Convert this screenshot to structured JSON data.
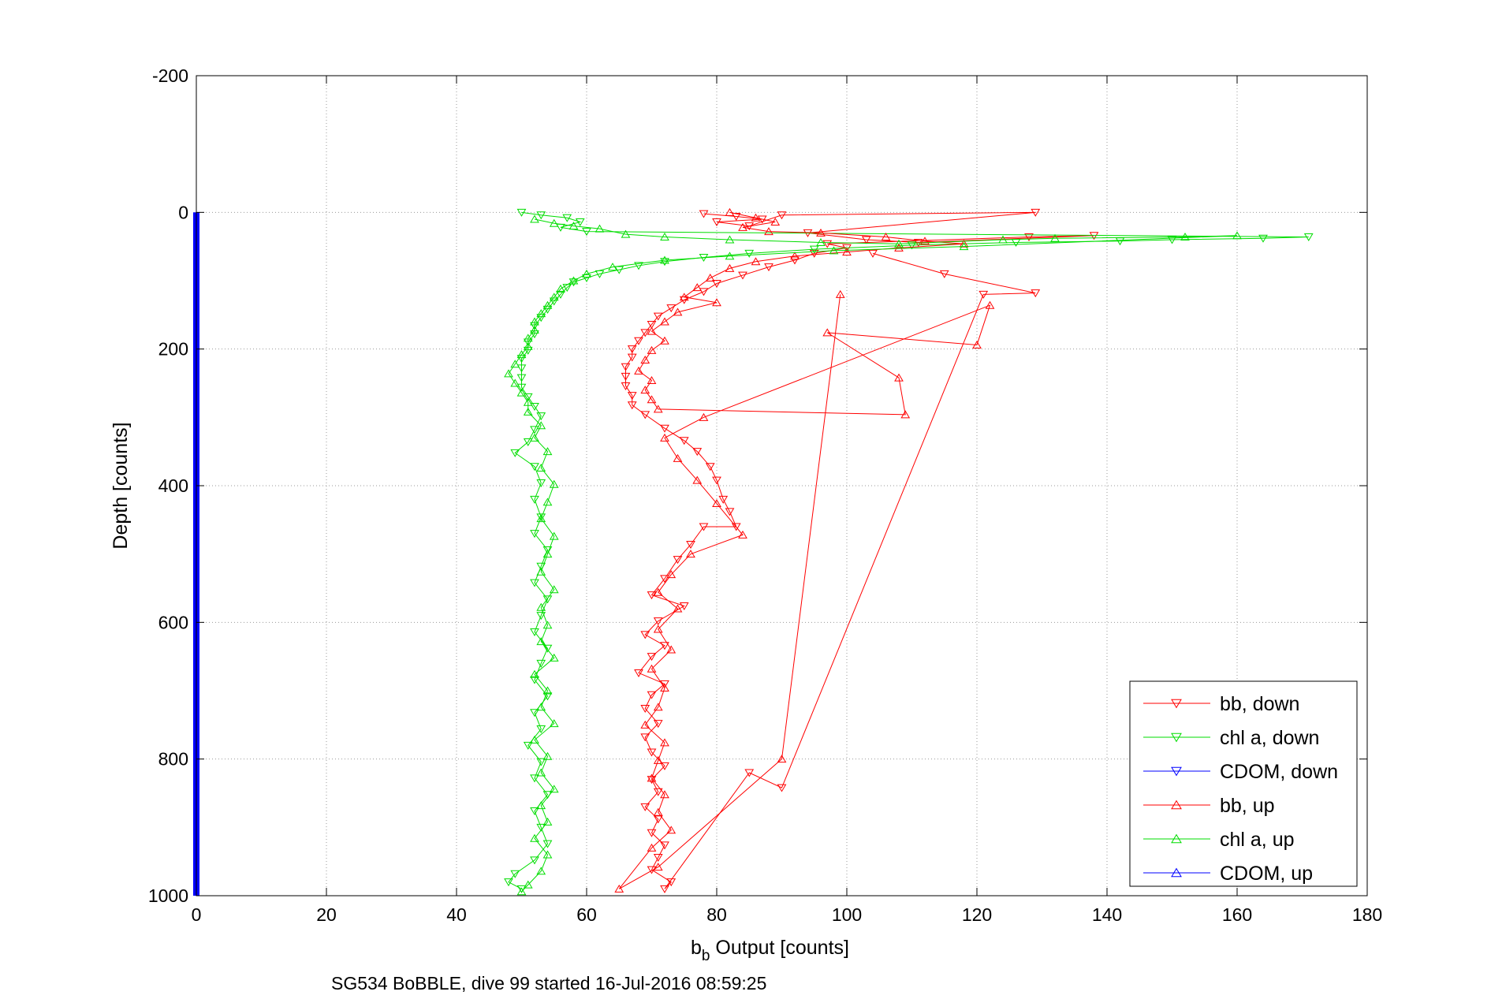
{
  "chart_data": {
    "type": "scatter",
    "title": "",
    "xlabel": "b",
    "xlabel_subscript": "b",
    "xlabel_rest": " Output [counts]",
    "ylabel": "Depth [counts]",
    "subtitle": "SG534 BoBBLE, dive 99 started 16-Jul-2016 08:59:25",
    "xlim": [
      0,
      180
    ],
    "ylim": [
      -200,
      1000
    ],
    "y_reversed": true,
    "grid": true,
    "legend_position": "bottom-right",
    "x_ticks": [
      "0",
      "20",
      "40",
      "60",
      "80",
      "100",
      "120",
      "140",
      "160",
      "180"
    ],
    "y_ticks": [
      "-200",
      "0",
      "200",
      "400",
      "600",
      "800",
      "1000"
    ],
    "colors": {
      "bb": "#ff0000",
      "chl": "#00dd00",
      "cdom": "#0000ff",
      "grid": "#999999"
    },
    "series": [
      {
        "name": "bb, down",
        "marker": "triangle-down",
        "color": "#ff0000",
        "points": [
          [
            78,
            2
          ],
          [
            83,
            6
          ],
          [
            87,
            10
          ],
          [
            80,
            14
          ],
          [
            85,
            20
          ],
          [
            90,
            4
          ],
          [
            129,
            0
          ],
          [
            94,
            30
          ],
          [
            103,
            40
          ],
          [
            111,
            44
          ],
          [
            138,
            34
          ],
          [
            128,
            36
          ],
          [
            97,
            46
          ],
          [
            100,
            52
          ],
          [
            95,
            60
          ],
          [
            92,
            70
          ],
          [
            88,
            80
          ],
          [
            84,
            92
          ],
          [
            80,
            104
          ],
          [
            78,
            116
          ],
          [
            75,
            128
          ],
          [
            73,
            140
          ],
          [
            71,
            152
          ],
          [
            70,
            164
          ],
          [
            69,
            176
          ],
          [
            68,
            188
          ],
          [
            67,
            200
          ],
          [
            67,
            212
          ],
          [
            66,
            226
          ],
          [
            66,
            240
          ],
          [
            66,
            254
          ],
          [
            67,
            268
          ],
          [
            67,
            282
          ],
          [
            69,
            296
          ],
          [
            72,
            316
          ],
          [
            75,
            334
          ],
          [
            77,
            350
          ],
          [
            79,
            372
          ],
          [
            80,
            392
          ],
          [
            81,
            420
          ],
          [
            82,
            438
          ],
          [
            83,
            460
          ],
          [
            78,
            460
          ],
          [
            76,
            486
          ],
          [
            74,
            508
          ],
          [
            72,
            536
          ],
          [
            70,
            560
          ],
          [
            75,
            576
          ],
          [
            71,
            598
          ],
          [
            69,
            618
          ],
          [
            72,
            634
          ],
          [
            70,
            650
          ],
          [
            68,
            674
          ],
          [
            72,
            690
          ],
          [
            70,
            706
          ],
          [
            69,
            726
          ],
          [
            71,
            748
          ],
          [
            69,
            768
          ],
          [
            70,
            790
          ],
          [
            72,
            810
          ],
          [
            70,
            830
          ],
          [
            71,
            848
          ],
          [
            69,
            870
          ],
          [
            71,
            888
          ],
          [
            70,
            908
          ],
          [
            72,
            926
          ],
          [
            71,
            944
          ],
          [
            70,
            962
          ],
          [
            73,
            980
          ],
          [
            72,
            990
          ],
          [
            85,
            820
          ],
          [
            90,
            842
          ],
          [
            121,
            120
          ],
          [
            129,
            118
          ],
          [
            115,
            90
          ],
          [
            104,
            60
          ]
        ]
      },
      {
        "name": "chl a, down",
        "marker": "triangle-down",
        "color": "#00dd00",
        "points": [
          [
            50,
            0
          ],
          [
            53,
            4
          ],
          [
            57,
            8
          ],
          [
            59,
            14
          ],
          [
            56,
            22
          ],
          [
            60,
            28
          ],
          [
            171,
            36
          ],
          [
            164,
            38
          ],
          [
            150,
            40
          ],
          [
            142,
            42
          ],
          [
            126,
            44
          ],
          [
            110,
            48
          ],
          [
            95,
            54
          ],
          [
            85,
            60
          ],
          [
            78,
            66
          ],
          [
            72,
            72
          ],
          [
            68,
            78
          ],
          [
            65,
            84
          ],
          [
            62,
            90
          ],
          [
            60,
            96
          ],
          [
            58,
            102
          ],
          [
            57,
            110
          ],
          [
            56,
            120
          ],
          [
            55,
            130
          ],
          [
            54,
            142
          ],
          [
            53,
            154
          ],
          [
            52,
            166
          ],
          [
            52,
            178
          ],
          [
            51,
            190
          ],
          [
            51,
            202
          ],
          [
            50,
            214
          ],
          [
            50,
            228
          ],
          [
            50,
            242
          ],
          [
            50,
            256
          ],
          [
            51,
            270
          ],
          [
            52,
            284
          ],
          [
            53,
            298
          ],
          [
            52,
            318
          ],
          [
            51,
            336
          ],
          [
            49,
            352
          ],
          [
            52,
            372
          ],
          [
            53,
            396
          ],
          [
            52,
            420
          ],
          [
            53,
            446
          ],
          [
            52,
            470
          ],
          [
            54,
            494
          ],
          [
            53,
            518
          ],
          [
            52,
            542
          ],
          [
            54,
            566
          ],
          [
            53,
            590
          ],
          [
            52,
            614
          ],
          [
            54,
            638
          ],
          [
            53,
            660
          ],
          [
            52,
            684
          ],
          [
            54,
            708
          ],
          [
            52,
            732
          ],
          [
            53,
            756
          ],
          [
            51,
            780
          ],
          [
            53,
            804
          ],
          [
            52,
            828
          ],
          [
            54,
            852
          ],
          [
            52,
            876
          ],
          [
            53,
            900
          ],
          [
            54,
            924
          ],
          [
            52,
            948
          ],
          [
            49,
            968
          ],
          [
            48,
            980
          ],
          [
            50,
            990
          ]
        ]
      },
      {
        "name": "CDOM, down",
        "marker": "triangle-down",
        "color": "#0000ff",
        "points": [
          [
            0,
            0
          ],
          [
            0,
            100
          ],
          [
            0,
            200
          ],
          [
            0,
            300
          ],
          [
            0,
            400
          ],
          [
            0,
            500
          ],
          [
            0,
            600
          ],
          [
            0,
            700
          ],
          [
            0,
            800
          ],
          [
            0,
            900
          ],
          [
            0,
            1000
          ]
        ]
      },
      {
        "name": "bb, up",
        "marker": "triangle-up",
        "color": "#ff0000",
        "points": [
          [
            82,
            0
          ],
          [
            86,
            8
          ],
          [
            89,
            14
          ],
          [
            84,
            22
          ],
          [
            88,
            28
          ],
          [
            96,
            30
          ],
          [
            106,
            36
          ],
          [
            112,
            42
          ],
          [
            118,
            46
          ],
          [
            108,
            52
          ],
          [
            100,
            58
          ],
          [
            92,
            64
          ],
          [
            86,
            72
          ],
          [
            82,
            82
          ],
          [
            79,
            96
          ],
          [
            77,
            110
          ],
          [
            75,
            124
          ],
          [
            80,
            132
          ],
          [
            74,
            146
          ],
          [
            72,
            160
          ],
          [
            70,
            174
          ],
          [
            72,
            188
          ],
          [
            70,
            202
          ],
          [
            69,
            216
          ],
          [
            68,
            232
          ],
          [
            70,
            246
          ],
          [
            69,
            260
          ],
          [
            70,
            274
          ],
          [
            71,
            288
          ],
          [
            109,
            296
          ],
          [
            108,
            242
          ],
          [
            97,
            176
          ],
          [
            120,
            194
          ],
          [
            122,
            136
          ],
          [
            78,
            300
          ],
          [
            72,
            330
          ],
          [
            74,
            360
          ],
          [
            77,
            392
          ],
          [
            80,
            426
          ],
          [
            84,
            472
          ],
          [
            76,
            500
          ],
          [
            73,
            530
          ],
          [
            71,
            556
          ],
          [
            74,
            580
          ],
          [
            71,
            610
          ],
          [
            73,
            640
          ],
          [
            70,
            668
          ],
          [
            72,
            696
          ],
          [
            71,
            724
          ],
          [
            69,
            750
          ],
          [
            72,
            776
          ],
          [
            71,
            802
          ],
          [
            70,
            828
          ],
          [
            72,
            852
          ],
          [
            71,
            878
          ],
          [
            73,
            904
          ],
          [
            70,
            930
          ],
          [
            65,
            990
          ],
          [
            71,
            958
          ],
          [
            90,
            800
          ],
          [
            99,
            120
          ]
        ]
      },
      {
        "name": "chl a, up",
        "marker": "triangle-up",
        "color": "#00dd00",
        "points": [
          [
            52,
            10
          ],
          [
            55,
            16
          ],
          [
            58,
            20
          ],
          [
            62,
            24
          ],
          [
            66,
            32
          ],
          [
            72,
            36
          ],
          [
            82,
            40
          ],
          [
            96,
            44
          ],
          [
            108,
            46
          ],
          [
            124,
            40
          ],
          [
            132,
            38
          ],
          [
            152,
            36
          ],
          [
            160,
            34
          ],
          [
            118,
            50
          ],
          [
            98,
            56
          ],
          [
            82,
            64
          ],
          [
            72,
            70
          ],
          [
            64,
            80
          ],
          [
            60,
            90
          ],
          [
            58,
            100
          ],
          [
            56,
            112
          ],
          [
            55,
            124
          ],
          [
            54,
            136
          ],
          [
            53,
            148
          ],
          [
            52,
            160
          ],
          [
            52,
            172
          ],
          [
            51,
            184
          ],
          [
            51,
            196
          ],
          [
            50,
            208
          ],
          [
            49,
            222
          ],
          [
            48,
            236
          ],
          [
            49,
            250
          ],
          [
            50,
            264
          ],
          [
            51,
            278
          ],
          [
            51,
            292
          ],
          [
            53,
            312
          ],
          [
            52,
            330
          ],
          [
            54,
            350
          ],
          [
            53,
            374
          ],
          [
            55,
            398
          ],
          [
            54,
            424
          ],
          [
            53,
            448
          ],
          [
            55,
            474
          ],
          [
            54,
            500
          ],
          [
            53,
            526
          ],
          [
            55,
            552
          ],
          [
            53,
            578
          ],
          [
            54,
            604
          ],
          [
            53,
            628
          ],
          [
            55,
            652
          ],
          [
            52,
            676
          ],
          [
            54,
            700
          ],
          [
            53,
            724
          ],
          [
            55,
            748
          ],
          [
            52,
            772
          ],
          [
            54,
            796
          ],
          [
            53,
            820
          ],
          [
            55,
            844
          ],
          [
            53,
            868
          ],
          [
            54,
            892
          ],
          [
            52,
            916
          ],
          [
            54,
            940
          ],
          [
            53,
            964
          ],
          [
            51,
            984
          ],
          [
            50,
            994
          ]
        ]
      },
      {
        "name": "CDOM, up",
        "marker": "triangle-up",
        "color": "#0000ff",
        "points": [
          [
            0,
            0
          ],
          [
            0,
            250
          ],
          [
            0,
            500
          ],
          [
            0,
            750
          ],
          [
            0,
            1000
          ]
        ]
      }
    ]
  }
}
